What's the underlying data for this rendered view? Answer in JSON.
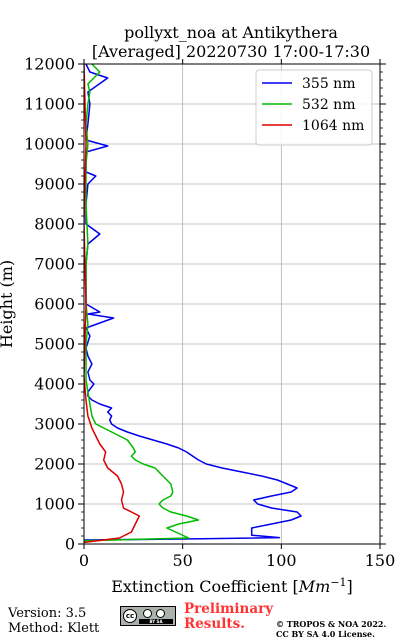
{
  "chart_data": {
    "type": "line",
    "title": "pollyxt_noa at Antikythera",
    "subtitle": "[Averaged] 20220730 17:00-17:30",
    "xlabel": "Extinction Coefficient [",
    "xlabel_unit": "Mm",
    "xlabel_exp": "−1",
    "xlabel_close": "]",
    "ylabel": "Height (m)",
    "xlim": [
      0,
      150
    ],
    "ylim": [
      0,
      12000
    ],
    "xticks": [
      "0",
      "50",
      "100",
      "150"
    ],
    "xtick_values": [
      0,
      50,
      100,
      150
    ],
    "yticks": [
      "0",
      "1000",
      "2000",
      "3000",
      "4000",
      "5000",
      "6000",
      "7000",
      "8000",
      "9000",
      "10000",
      "11000",
      "12000"
    ],
    "ytick_values": [
      0,
      1000,
      2000,
      3000,
      4000,
      5000,
      6000,
      7000,
      8000,
      9000,
      10000,
      11000,
      12000
    ],
    "grid": true,
    "legend_position": "top-right",
    "series": [
      {
        "name": "355 nm",
        "color": "#0000ee",
        "points": [
          [
            0,
            100
          ],
          [
            60,
            130
          ],
          [
            99,
            160
          ],
          [
            85,
            220
          ],
          [
            85,
            400
          ],
          [
            95,
            500
          ],
          [
            105,
            600
          ],
          [
            110,
            700
          ],
          [
            108,
            800
          ],
          [
            95,
            900
          ],
          [
            88,
            1000
          ],
          [
            86,
            1100
          ],
          [
            95,
            1200
          ],
          [
            105,
            1300
          ],
          [
            108,
            1400
          ],
          [
            103,
            1500
          ],
          [
            98,
            1600
          ],
          [
            90,
            1700
          ],
          [
            80,
            1800
          ],
          [
            70,
            1900
          ],
          [
            62,
            2000
          ],
          [
            58,
            2100
          ],
          [
            55,
            2200
          ],
          [
            52,
            2300
          ],
          [
            48,
            2400
          ],
          [
            42,
            2500
          ],
          [
            35,
            2600
          ],
          [
            28,
            2700
          ],
          [
            22,
            2800
          ],
          [
            17,
            2900
          ],
          [
            14,
            3000
          ],
          [
            13,
            3100
          ],
          [
            14,
            3200
          ],
          [
            12,
            3300
          ],
          [
            14,
            3400
          ],
          [
            8,
            3500
          ],
          [
            4,
            3600
          ],
          [
            2,
            3700
          ],
          [
            2,
            3800
          ],
          [
            5,
            4000
          ],
          [
            3,
            4100
          ],
          [
            2,
            4300
          ],
          [
            4,
            4500
          ],
          [
            2,
            4700
          ],
          [
            1,
            4900
          ],
          [
            3,
            5200
          ],
          [
            1,
            5400
          ],
          [
            15,
            5650
          ],
          [
            2,
            5750
          ],
          [
            8,
            5800
          ],
          [
            1,
            6000
          ],
          [
            1,
            6500
          ],
          [
            1,
            7000
          ],
          [
            2,
            7500
          ],
          [
            8,
            7750
          ],
          [
            1,
            8000
          ],
          [
            1,
            8500
          ],
          [
            2,
            9000
          ],
          [
            6,
            9200
          ],
          [
            1,
            9300
          ],
          [
            1,
            9800
          ],
          [
            12,
            9950
          ],
          [
            1,
            10100
          ],
          [
            2,
            10500
          ],
          [
            3,
            11000
          ],
          [
            2,
            11300
          ],
          [
            12,
            11650
          ],
          [
            3,
            11800
          ],
          [
            1,
            12000
          ]
        ]
      },
      {
        "name": "532 nm",
        "color": "#00bb00",
        "points": [
          [
            0,
            80
          ],
          [
            53,
            150
          ],
          [
            42,
            400
          ],
          [
            48,
            500
          ],
          [
            58,
            600
          ],
          [
            52,
            700
          ],
          [
            44,
            800
          ],
          [
            40,
            900
          ],
          [
            38,
            1000
          ],
          [
            40,
            1100
          ],
          [
            44,
            1200
          ],
          [
            45,
            1300
          ],
          [
            44,
            1500
          ],
          [
            42,
            1600
          ],
          [
            40,
            1700
          ],
          [
            38,
            1800
          ],
          [
            36,
            1900
          ],
          [
            30,
            2000
          ],
          [
            26,
            2100
          ],
          [
            24,
            2200
          ],
          [
            26,
            2300
          ],
          [
            25,
            2400
          ],
          [
            22,
            2600
          ],
          [
            18,
            2700
          ],
          [
            14,
            2800
          ],
          [
            10,
            2900
          ],
          [
            6,
            3000
          ],
          [
            4,
            3200
          ],
          [
            3,
            3500
          ],
          [
            2,
            3800
          ],
          [
            1,
            4100
          ],
          [
            1,
            5000
          ],
          [
            2,
            5500
          ],
          [
            1,
            6000
          ],
          [
            1,
            7000
          ],
          [
            2,
            7500
          ],
          [
            1,
            8500
          ],
          [
            1,
            9500
          ],
          [
            2,
            10000
          ],
          [
            1,
            10500
          ],
          [
            2,
            11000
          ],
          [
            3,
            11300
          ],
          [
            2,
            11500
          ],
          [
            8,
            11800
          ],
          [
            4,
            12000
          ]
        ]
      },
      {
        "name": "1064 nm",
        "color": "#dd0000",
        "points": [
          [
            0,
            40
          ],
          [
            18,
            150
          ],
          [
            24,
            300
          ],
          [
            28,
            700
          ],
          [
            20,
            900
          ],
          [
            19,
            1100
          ],
          [
            20,
            1300
          ],
          [
            19,
            1500
          ],
          [
            17,
            1700
          ],
          [
            12,
            1900
          ],
          [
            10,
            2100
          ],
          [
            11,
            2300
          ],
          [
            8,
            2500
          ],
          [
            6,
            2700
          ],
          [
            4,
            2900
          ],
          [
            2,
            3200
          ],
          [
            1,
            3600
          ],
          [
            0,
            4200
          ],
          [
            1,
            6000
          ],
          [
            0,
            8000
          ],
          [
            1,
            10000
          ],
          [
            0,
            12000
          ]
        ]
      }
    ]
  },
  "footer": {
    "version": "Version: 3.5",
    "method": "Method: Klett",
    "preliminary_line1": "Preliminary",
    "preliminary_line2": "Results.",
    "copyright_line1": "© TROPOS & NOA 2022.",
    "copyright_line2": "CC BY SA 4.0 License.",
    "cc_badge_text": "cc",
    "cc_strip_text": "BY SA"
  }
}
